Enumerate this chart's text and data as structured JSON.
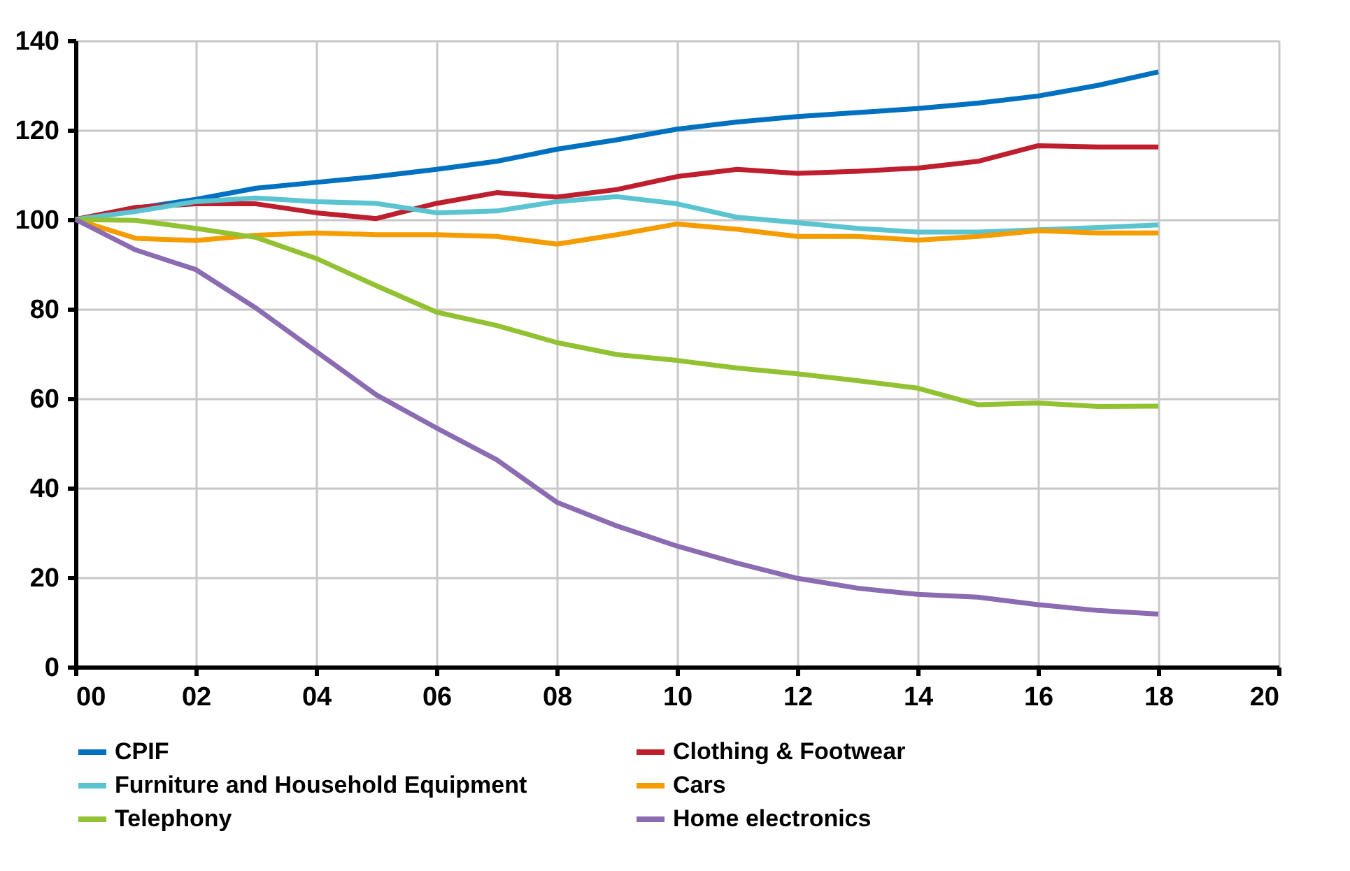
{
  "chart_data": {
    "type": "line",
    "x": [
      0,
      1,
      2,
      3,
      4,
      5,
      6,
      7,
      8,
      9,
      10,
      11,
      12,
      13,
      14,
      15,
      16,
      17,
      18
    ],
    "xlim": [
      0,
      20
    ],
    "xticks": [
      {
        "value": 0,
        "label": "00"
      },
      {
        "value": 2,
        "label": "02"
      },
      {
        "value": 4,
        "label": "04"
      },
      {
        "value": 6,
        "label": "06"
      },
      {
        "value": 8,
        "label": "08"
      },
      {
        "value": 10,
        "label": "10"
      },
      {
        "value": 12,
        "label": "12"
      },
      {
        "value": 14,
        "label": "14"
      },
      {
        "value": 16,
        "label": "16"
      },
      {
        "value": 18,
        "label": "18"
      },
      {
        "value": 20,
        "label": "20"
      }
    ],
    "ylim": [
      0,
      140
    ],
    "yticks": [
      0,
      20,
      40,
      60,
      80,
      100,
      120,
      140
    ],
    "grid": true,
    "legend": "bottom",
    "marker": "none",
    "line_style": "solid",
    "series": [
      {
        "name": "CPIF",
        "color": "#0070c0",
        "values": [
          100,
          102.5,
          104.5,
          107,
          108.3,
          109.6,
          111.2,
          113,
          115.7,
          117.8,
          120.2,
          121.8,
          123,
          123.9,
          124.8,
          126,
          127.6,
          130,
          133
        ]
      },
      {
        "name": "Clothing & Footwear",
        "color": "#be1e2d",
        "values": [
          100,
          102.7,
          103.5,
          103.5,
          101.5,
          100.2,
          103.6,
          106,
          105,
          106.7,
          109.6,
          111.2,
          110.3,
          110.8,
          111.5,
          113,
          116.5,
          116.2,
          116.2
        ]
      },
      {
        "name": "Furniture and Household Equipment",
        "color": "#5bc4d1",
        "values": [
          100,
          101.8,
          104,
          104.8,
          104,
          103.6,
          101.5,
          101.9,
          104,
          105.1,
          103.5,
          100.5,
          99.3,
          98,
          97.2,
          97.2,
          97.7,
          98.2,
          98.8
        ]
      },
      {
        "name": "Cars",
        "color": "#f59c00",
        "values": [
          100,
          95.8,
          95.3,
          96.5,
          97,
          96.6,
          96.6,
          96.2,
          94.5,
          96.6,
          99,
          97.8,
          96.2,
          96.2,
          95.4,
          96.2,
          97.5,
          97,
          97
        ]
      },
      {
        "name": "Telephony",
        "color": "#92c132",
        "values": [
          100,
          99.8,
          98,
          96,
          91.3,
          85.2,
          79.3,
          76.3,
          72.5,
          69.8,
          68.5,
          66.8,
          65.5,
          64,
          62.3,
          58.6,
          59,
          58.2,
          58.3
        ]
      },
      {
        "name": "Home electronics",
        "color": "#8b6bb1",
        "values": [
          100,
          93.2,
          88.8,
          80.2,
          70.5,
          60.8,
          53.4,
          46.3,
          36.8,
          31.5,
          27,
          23.2,
          19.8,
          17.6,
          16.2,
          15.6,
          13.9,
          12.6,
          11.8
        ]
      }
    ]
  }
}
